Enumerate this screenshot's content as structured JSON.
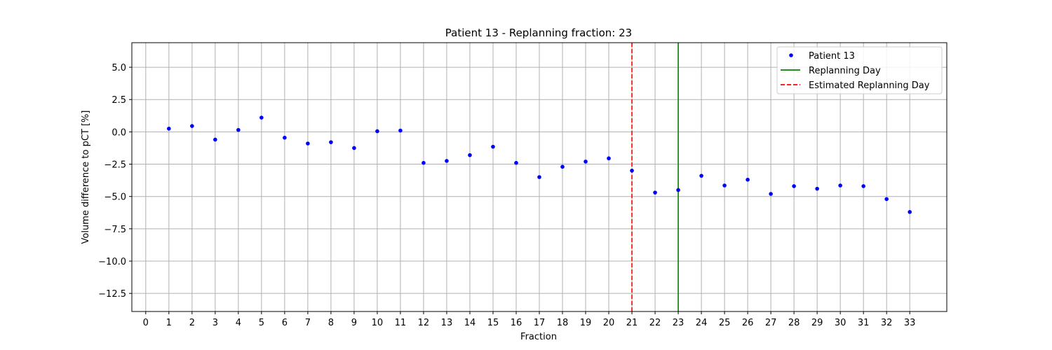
{
  "chart_data": {
    "type": "scatter",
    "title": "Patient 13 - Replanning fraction: 23",
    "xlabel": "Fraction",
    "ylabel": "Volume difference to pCT [%]",
    "xlim": [
      -0.6,
      34.6
    ],
    "ylim": [
      -13.9,
      6.9
    ],
    "xticks": [
      0,
      1,
      2,
      3,
      4,
      5,
      6,
      7,
      8,
      9,
      10,
      11,
      12,
      13,
      14,
      15,
      16,
      17,
      18,
      19,
      20,
      21,
      22,
      23,
      24,
      25,
      26,
      27,
      28,
      29,
      30,
      31,
      32,
      33
    ],
    "yticks": [
      5.0,
      2.5,
      0.0,
      -2.5,
      -5.0,
      -7.5,
      -10.0,
      -12.5
    ],
    "ytick_labels": [
      "5.0",
      "2.5",
      "0.0",
      "−2.5",
      "−5.0",
      "−7.5",
      "−10.0",
      "−12.5"
    ],
    "grid": true,
    "legend_position": "top-right",
    "series": [
      {
        "name": "Patient 13",
        "style": "points",
        "color": "#0000ff",
        "x": [
          1,
          2,
          3,
          4,
          5,
          6,
          7,
          8,
          9,
          10,
          11,
          12,
          13,
          14,
          15,
          16,
          17,
          18,
          19,
          20,
          21,
          22,
          23,
          24,
          25,
          26,
          27,
          28,
          29,
          30,
          31,
          32,
          33
        ],
        "y": [
          0.25,
          0.45,
          -0.6,
          0.15,
          1.1,
          -0.45,
          -0.9,
          -0.8,
          -1.25,
          0.05,
          0.1,
          -2.4,
          -2.25,
          -1.8,
          -1.15,
          -2.4,
          -3.5,
          -2.7,
          -2.3,
          -2.05,
          -3.0,
          -4.7,
          -4.5,
          -3.4,
          -4.15,
          -3.7,
          -4.8,
          -4.2,
          -4.4,
          -4.15,
          -4.2,
          -5.2,
          -6.2
        ]
      }
    ],
    "vlines": [
      {
        "name": "Replanning Day",
        "x": 23,
        "color": "#008000",
        "style": "solid"
      },
      {
        "name": "Estimated Replanning Day",
        "x": 21,
        "color": "#ff0000",
        "style": "dashed"
      }
    ],
    "legend": [
      "Patient 13",
      "Replanning Day",
      "Estimated Replanning Day"
    ]
  }
}
